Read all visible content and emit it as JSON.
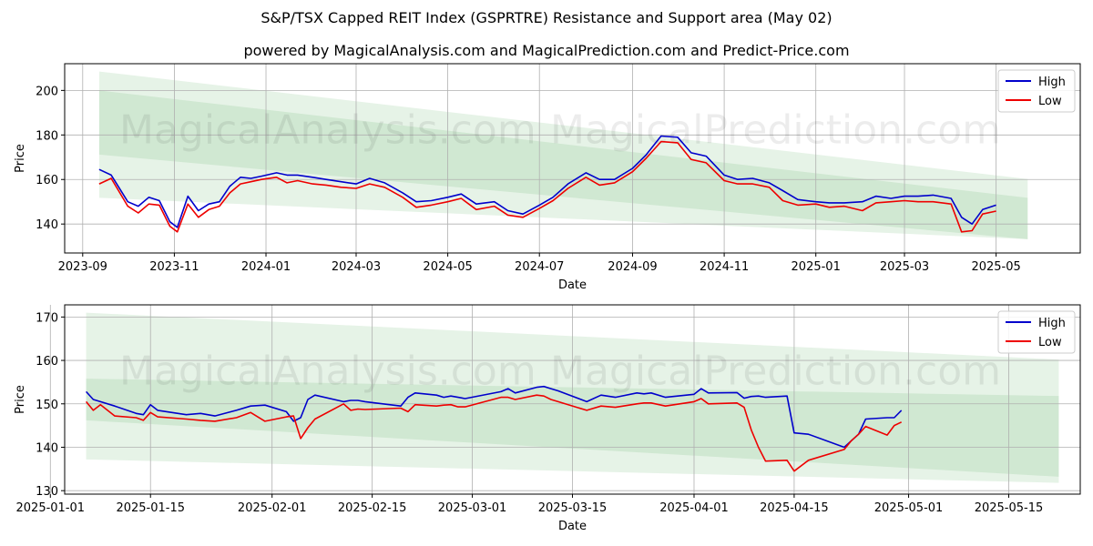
{
  "title": "S&P/TSX Capped REIT Index (GSPRTRE) Resistance and Support area (May 02)",
  "subtitle": "powered by MagicalAnalysis.com and MagicalPrediction.com and Predict-Price.com",
  "watermarks": [
    "MagicalAnalysis.com",
    "MagicalPrediction.com"
  ],
  "colors": {
    "high": "#0000cc",
    "low": "#ee0000",
    "band": "#2e9e3a"
  },
  "chart_data": [
    {
      "type": "line",
      "xlabel": "Date",
      "ylabel": "Price",
      "xlim": [
        "2023-08-20",
        "2025-06-26"
      ],
      "ylim": [
        127,
        212
      ],
      "grid": true,
      "legend": "top-right",
      "xticks": [
        "2023-09",
        "2023-11",
        "2024-01",
        "2024-03",
        "2024-05",
        "2024-07",
        "2024-09",
        "2024-11",
        "2025-01",
        "2025-03",
        "2025-05"
      ],
      "yticks": [
        140,
        160,
        180,
        200
      ],
      "bands": [
        {
          "x": [
            "2023-09-12",
            "2025-05-22"
          ],
          "upper": [
            208.5,
            160.2
          ],
          "lower": [
            151.8,
            133.2
          ]
        },
        {
          "x": [
            "2023-09-12",
            "2025-05-22"
          ],
          "upper": [
            200.0,
            151.8
          ],
          "lower": [
            171.2,
            133.2
          ]
        }
      ],
      "series": [
        {
          "name": "High",
          "x": [
            "2023-09-12",
            "2023-09-20",
            "2023-10-01",
            "2023-10-08",
            "2023-10-15",
            "2023-10-22",
            "2023-10-29",
            "2023-11-03",
            "2023-11-10",
            "2023-11-17",
            "2023-11-24",
            "2023-12-01",
            "2023-12-08",
            "2023-12-15",
            "2023-12-22",
            "2023-12-29",
            "2024-01-08",
            "2024-01-15",
            "2024-01-22",
            "2024-02-01",
            "2024-02-10",
            "2024-02-20",
            "2024-03-01",
            "2024-03-10",
            "2024-03-20",
            "2024-04-01",
            "2024-04-10",
            "2024-04-20",
            "2024-05-01",
            "2024-05-10",
            "2024-05-20",
            "2024-06-01",
            "2024-06-10",
            "2024-06-20",
            "2024-07-01",
            "2024-07-10",
            "2024-07-20",
            "2024-08-01",
            "2024-08-10",
            "2024-08-20",
            "2024-09-01",
            "2024-09-10",
            "2024-09-20",
            "2024-10-01",
            "2024-10-10",
            "2024-10-20",
            "2024-11-01",
            "2024-11-10",
            "2024-11-20",
            "2024-12-01",
            "2024-12-10",
            "2024-12-20",
            "2025-01-01",
            "2025-01-10",
            "2025-01-20",
            "2025-02-01",
            "2025-02-10",
            "2025-02-20",
            "2025-03-01",
            "2025-03-10",
            "2025-03-20",
            "2025-04-01",
            "2025-04-08",
            "2025-04-15",
            "2025-04-22",
            "2025-05-01"
          ],
          "values": [
            164.5,
            162.0,
            150.0,
            148.0,
            152.0,
            150.5,
            141.0,
            138.5,
            152.5,
            146.0,
            149.0,
            150.0,
            157.0,
            161.0,
            160.5,
            161.5,
            163.0,
            162.0,
            162.0,
            161.0,
            160.0,
            159.0,
            158.0,
            160.5,
            158.5,
            154.0,
            150.0,
            150.5,
            152.0,
            153.5,
            149.0,
            150.0,
            146.0,
            144.5,
            148.5,
            152.0,
            158.0,
            163.0,
            160.0,
            160.0,
            165.0,
            171.0,
            179.5,
            179.0,
            172.0,
            170.5,
            162.0,
            160.0,
            160.5,
            158.5,
            155.0,
            151.0,
            150.0,
            149.5,
            149.5,
            150.0,
            152.5,
            151.5,
            152.5,
            152.5,
            153.0,
            151.5,
            143.0,
            140.0,
            146.5,
            148.5
          ]
        },
        {
          "name": "Low",
          "x": [
            "2023-09-12",
            "2023-09-20",
            "2023-10-01",
            "2023-10-08",
            "2023-10-15",
            "2023-10-22",
            "2023-10-29",
            "2023-11-03",
            "2023-11-10",
            "2023-11-17",
            "2023-11-24",
            "2023-12-01",
            "2023-12-08",
            "2023-12-15",
            "2023-12-22",
            "2023-12-29",
            "2024-01-08",
            "2024-01-15",
            "2024-01-22",
            "2024-02-01",
            "2024-02-10",
            "2024-02-20",
            "2024-03-01",
            "2024-03-10",
            "2024-03-20",
            "2024-04-01",
            "2024-04-10",
            "2024-04-20",
            "2024-05-01",
            "2024-05-10",
            "2024-05-20",
            "2024-06-01",
            "2024-06-10",
            "2024-06-20",
            "2024-07-01",
            "2024-07-10",
            "2024-07-20",
            "2024-08-01",
            "2024-08-10",
            "2024-08-20",
            "2024-09-01",
            "2024-09-10",
            "2024-09-20",
            "2024-10-01",
            "2024-10-10",
            "2024-10-20",
            "2024-11-01",
            "2024-11-10",
            "2024-11-20",
            "2024-12-01",
            "2024-12-10",
            "2024-12-20",
            "2025-01-01",
            "2025-01-10",
            "2025-01-20",
            "2025-02-01",
            "2025-02-10",
            "2025-02-20",
            "2025-03-01",
            "2025-03-10",
            "2025-03-20",
            "2025-04-01",
            "2025-04-08",
            "2025-04-15",
            "2025-04-22",
            "2025-05-01"
          ],
          "values": [
            158.0,
            160.5,
            148.0,
            145.0,
            149.0,
            148.5,
            139.0,
            136.5,
            149.0,
            143.0,
            146.5,
            148.0,
            154.0,
            158.0,
            159.0,
            160.0,
            161.0,
            158.5,
            159.5,
            158.0,
            157.5,
            156.5,
            156.0,
            158.0,
            156.5,
            152.0,
            147.5,
            148.5,
            150.0,
            151.5,
            146.5,
            148.0,
            144.0,
            143.0,
            147.0,
            150.5,
            156.0,
            161.0,
            157.5,
            158.5,
            163.5,
            169.5,
            177.0,
            176.5,
            169.0,
            167.5,
            159.5,
            158.0,
            158.0,
            156.5,
            150.5,
            148.5,
            149.0,
            147.5,
            148.0,
            146.0,
            149.5,
            150.0,
            150.5,
            150.0,
            150.0,
            149.0,
            136.5,
            137.0,
            144.5,
            145.8
          ]
        }
      ]
    },
    {
      "type": "line",
      "xlabel": "Date",
      "ylabel": "Price",
      "xlim": [
        "2025-01-03",
        "2025-05-25"
      ],
      "ylim": [
        129.2,
        172.8
      ],
      "grid": true,
      "legend": "top-right",
      "xticks": [
        "2025-01-01",
        "2025-01-15",
        "2025-02-01",
        "2025-02-15",
        "2025-03-01",
        "2025-03-15",
        "2025-04-01",
        "2025-04-15",
        "2025-05-01",
        "2025-05-15"
      ],
      "yticks": [
        130,
        140,
        150,
        160,
        170
      ],
      "bands": [
        {
          "x": [
            "2025-01-06",
            "2025-05-22"
          ],
          "upper": [
            171.0,
            160.2
          ],
          "lower": [
            137.2,
            131.8
          ]
        },
        {
          "x": [
            "2025-01-06",
            "2025-05-22"
          ],
          "upper": [
            155.8,
            151.8
          ],
          "lower": [
            146.2,
            133.2
          ]
        }
      ],
      "series": [
        {
          "name": "High",
          "x": [
            "2025-01-06",
            "2025-01-07",
            "2025-01-08",
            "2025-01-10",
            "2025-01-13",
            "2025-01-14",
            "2025-01-15",
            "2025-01-16",
            "2025-01-20",
            "2025-01-22",
            "2025-01-24",
            "2025-01-27",
            "2025-01-29",
            "2025-01-31",
            "2025-02-03",
            "2025-02-04",
            "2025-02-05",
            "2025-02-06",
            "2025-02-07",
            "2025-02-11",
            "2025-02-12",
            "2025-02-13",
            "2025-02-14",
            "2025-02-19",
            "2025-02-20",
            "2025-02-21",
            "2025-02-24",
            "2025-02-25",
            "2025-02-26",
            "2025-02-27",
            "2025-02-28",
            "2025-03-05",
            "2025-03-06",
            "2025-03-07",
            "2025-03-10",
            "2025-03-11",
            "2025-03-12",
            "2025-03-13",
            "2025-03-17",
            "2025-03-19",
            "2025-03-21",
            "2025-03-24",
            "2025-03-25",
            "2025-03-26",
            "2025-03-28",
            "2025-04-01",
            "2025-04-02",
            "2025-04-03",
            "2025-04-07",
            "2025-04-08",
            "2025-04-09",
            "2025-04-10",
            "2025-04-11",
            "2025-04-14",
            "2025-04-15",
            "2025-04-17",
            "2025-04-22",
            "2025-04-23",
            "2025-04-24",
            "2025-04-25",
            "2025-04-28",
            "2025-04-29",
            "2025-04-30"
          ],
          "values": [
            152.8,
            151.0,
            150.5,
            149.5,
            147.8,
            147.5,
            149.8,
            148.5,
            147.5,
            147.8,
            147.2,
            148.5,
            149.5,
            149.7,
            148.2,
            146.0,
            146.8,
            151.0,
            152.0,
            150.5,
            150.8,
            150.8,
            150.5,
            149.5,
            151.5,
            152.5,
            152.0,
            151.5,
            151.8,
            151.5,
            151.2,
            152.8,
            153.5,
            152.5,
            153.8,
            154.0,
            153.5,
            153.0,
            150.5,
            152.0,
            151.5,
            152.5,
            152.3,
            152.5,
            151.5,
            152.2,
            153.5,
            152.5,
            152.6,
            151.3,
            151.7,
            151.8,
            151.5,
            151.8,
            143.3,
            143.0,
            140.0,
            141.5,
            143.0,
            146.5,
            146.8,
            146.8,
            148.5
          ]
        },
        {
          "name": "Low",
          "x": [
            "2025-01-06",
            "2025-01-07",
            "2025-01-08",
            "2025-01-10",
            "2025-01-13",
            "2025-01-14",
            "2025-01-15",
            "2025-01-16",
            "2025-01-20",
            "2025-01-22",
            "2025-01-24",
            "2025-01-27",
            "2025-01-29",
            "2025-01-31",
            "2025-02-03",
            "2025-02-04",
            "2025-02-05",
            "2025-02-06",
            "2025-02-07",
            "2025-02-11",
            "2025-02-12",
            "2025-02-13",
            "2025-02-14",
            "2025-02-19",
            "2025-02-20",
            "2025-02-21",
            "2025-02-24",
            "2025-02-25",
            "2025-02-26",
            "2025-02-27",
            "2025-02-28",
            "2025-03-05",
            "2025-03-06",
            "2025-03-07",
            "2025-03-10",
            "2025-03-11",
            "2025-03-12",
            "2025-03-13",
            "2025-03-17",
            "2025-03-19",
            "2025-03-21",
            "2025-03-24",
            "2025-03-25",
            "2025-03-26",
            "2025-03-28",
            "2025-04-01",
            "2025-04-02",
            "2025-04-03",
            "2025-04-07",
            "2025-04-08",
            "2025-04-09",
            "2025-04-10",
            "2025-04-11",
            "2025-04-14",
            "2025-04-15",
            "2025-04-17",
            "2025-04-22",
            "2025-04-23",
            "2025-04-24",
            "2025-04-25",
            "2025-04-28",
            "2025-04-29",
            "2025-04-30"
          ],
          "values": [
            150.5,
            148.5,
            149.8,
            147.2,
            146.8,
            146.2,
            148.0,
            147.0,
            146.5,
            146.2,
            146.0,
            146.8,
            148.0,
            146.0,
            147.0,
            147.2,
            142.0,
            144.5,
            146.5,
            150.0,
            148.5,
            148.8,
            148.7,
            149.0,
            148.2,
            149.8,
            149.5,
            149.7,
            149.8,
            149.3,
            149.3,
            151.5,
            151.5,
            151.0,
            152.0,
            151.8,
            151.0,
            150.5,
            148.5,
            149.5,
            149.2,
            150.0,
            150.2,
            150.2,
            149.5,
            150.5,
            151.2,
            150.0,
            150.2,
            149.2,
            144.0,
            140.0,
            136.8,
            137.0,
            134.5,
            137.0,
            139.5,
            141.5,
            143.0,
            144.8,
            142.8,
            145.0,
            145.8
          ]
        }
      ]
    }
  ]
}
